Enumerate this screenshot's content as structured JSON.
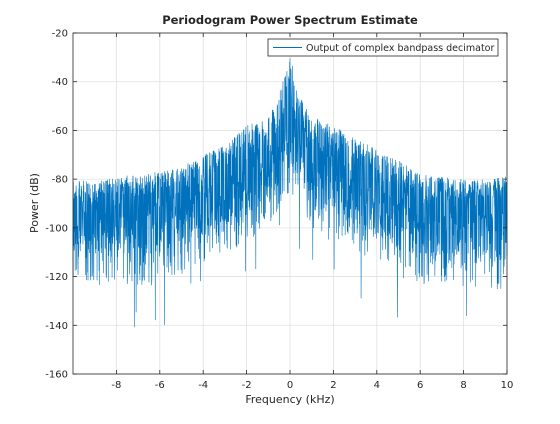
{
  "chart_data": {
    "type": "line",
    "title": "Periodogram Power Spectrum Estimate",
    "xlabel": "Frequency (kHz)",
    "ylabel": "Power (dB)",
    "xlim": [
      -10,
      10
    ],
    "ylim": [
      -160,
      -20
    ],
    "xticks": [
      -8,
      -6,
      -4,
      -2,
      0,
      2,
      4,
      6,
      8,
      10
    ],
    "xtick_labels": [
      "-8",
      "-6",
      "-4",
      "-2",
      "0",
      "2",
      "4",
      "6",
      "8",
      "10"
    ],
    "yticks": [
      -160,
      -140,
      -120,
      -100,
      -80,
      -60,
      -40,
      -20
    ],
    "ytick_labels": [
      "-160",
      "-140",
      "-120",
      "-100",
      "-80",
      "-60",
      "-40",
      "-20"
    ],
    "grid": true,
    "legend_location": "top-right",
    "series": [
      {
        "name": "Output of complex bandpass decimator",
        "color": "#0072bd",
        "style": "dense noisy spectrum; values are sampled envelope points",
        "x": [
          -10,
          -9,
          -8,
          -7,
          -6,
          -5,
          -4,
          -3,
          -2,
          -1,
          -0.5,
          0,
          0.5,
          1,
          2,
          3,
          4,
          5,
          6,
          7,
          8,
          9,
          10
        ],
        "upper": [
          -80,
          -81,
          -79,
          -78,
          -77,
          -75,
          -70,
          -66,
          -58,
          -54,
          -45,
          -30,
          -45,
          -54,
          -58,
          -63,
          -68,
          -72,
          -78,
          -79,
          -80,
          -80,
          -78
        ],
        "typical": [
          -93,
          -92,
          -91,
          -90,
          -89,
          -87,
          -83,
          -79,
          -76,
          -71,
          -64,
          -55,
          -64,
          -71,
          -76,
          -80,
          -84,
          -88,
          -91,
          -92,
          -93,
          -93,
          -94
        ],
        "lower": [
          -112,
          -112,
          -111,
          -112,
          -112,
          -108,
          -103,
          -99,
          -95,
          -88,
          -80,
          -75,
          -80,
          -88,
          -95,
          -98,
          -103,
          -108,
          -112,
          -112,
          -112,
          -113,
          -114
        ]
      }
    ]
  },
  "colors": {
    "series": "#0072bd",
    "grid": "#e1e1e1",
    "axes": "#262626"
  }
}
